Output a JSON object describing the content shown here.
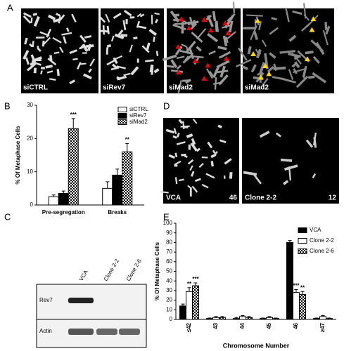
{
  "panel_labels": [
    "A",
    "B",
    "C",
    "D",
    "E"
  ],
  "panel_a": {
    "images": [
      "siCTRL",
      "siRev7",
      "siMad2",
      "siMad2"
    ]
  },
  "panel_c": {
    "lanes": [
      "VCA",
      "Clone 2-2",
      "Clone 2-6"
    ],
    "bands": [
      "Rev7",
      "Actin"
    ]
  },
  "panel_d": {
    "images": [
      {
        "label": "VCA",
        "count": 46
      },
      {
        "label": "Clone 2-2",
        "count": 12
      }
    ]
  },
  "chart_data": [
    {
      "type": "bar",
      "ylabel": "% Of Metaphase Cells",
      "categories": [
        "Pre-segregation",
        "Breaks"
      ],
      "series": [
        {
          "name": "siCTRL",
          "color": "#ffffff",
          "values": [
            2.5,
            5
          ],
          "errors": [
            0.5,
            2
          ]
        },
        {
          "name": "siRev7",
          "color": "#000000",
          "values": [
            3.5,
            9
          ],
          "errors": [
            0.7,
            1.8
          ]
        },
        {
          "name": "siMad2",
          "color": "#000000",
          "pattern": "checker",
          "values": [
            23,
            16
          ],
          "errors": [
            3,
            2.5
          ]
        }
      ],
      "ylim": [
        0,
        30
      ],
      "yticks": [
        0,
        10,
        20,
        30
      ],
      "legend": "upper right",
      "annotations": [
        {
          "text": "***",
          "category": 0,
          "series": 2
        },
        {
          "text": "**",
          "category": 1,
          "series": 2
        }
      ]
    },
    {
      "type": "bar",
      "ylabel": "% Of Metaphase Cells",
      "xlabel": "Chromosome Number",
      "categories": [
        "≤42",
        "43",
        "44",
        "45",
        "46",
        "≥47"
      ],
      "series": [
        {
          "name": "VCA",
          "color": "#000000",
          "values": [
            14,
            1,
            1,
            1,
            80,
            1
          ],
          "errors": [
            2,
            0.5,
            1,
            0.5,
            2,
            0.5
          ]
        },
        {
          "name": "Clone 2-2",
          "color": "#ffffff",
          "values": [
            29,
            2,
            3,
            2,
            28,
            3
          ],
          "errors": [
            4,
            1,
            1,
            1,
            3,
            1
          ]
        },
        {
          "name": "Clone 2-6",
          "color": "#000000",
          "pattern": "checker",
          "values": [
            35,
            2,
            2,
            1,
            26,
            1
          ],
          "errors": [
            3,
            1,
            1,
            0.5,
            3,
            0.5
          ]
        }
      ],
      "ylim": [
        0,
        100
      ],
      "yticks": [
        0,
        10,
        20,
        30,
        40,
        50,
        60,
        70,
        80,
        90,
        100
      ],
      "legend": "upper right",
      "annotations": [
        {
          "text": "**",
          "category": 0,
          "series": 1
        },
        {
          "text": "***",
          "category": 0,
          "series": 2
        },
        {
          "text": "***",
          "category": 4,
          "series": 1
        },
        {
          "text": "**",
          "category": 4,
          "series": 2
        }
      ]
    }
  ]
}
